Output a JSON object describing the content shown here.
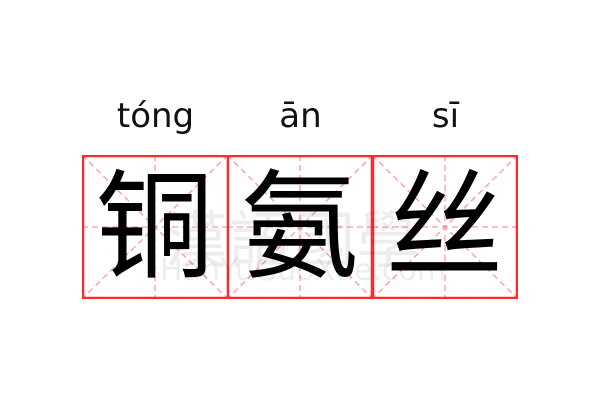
{
  "entries": [
    {
      "pinyin": "tóng",
      "hanzi": "铜"
    },
    {
      "pinyin": "ān",
      "hanzi": "氨"
    },
    {
      "pinyin": "sī",
      "hanzi": "丝"
    }
  ],
  "watermark": {
    "chinese": "漢語國學",
    "latin": "HanYuGuoXue.com"
  },
  "colors": {
    "grid_border": "#ff2a2a",
    "grid_guides": "#ff9a9a",
    "text": "#000000"
  }
}
